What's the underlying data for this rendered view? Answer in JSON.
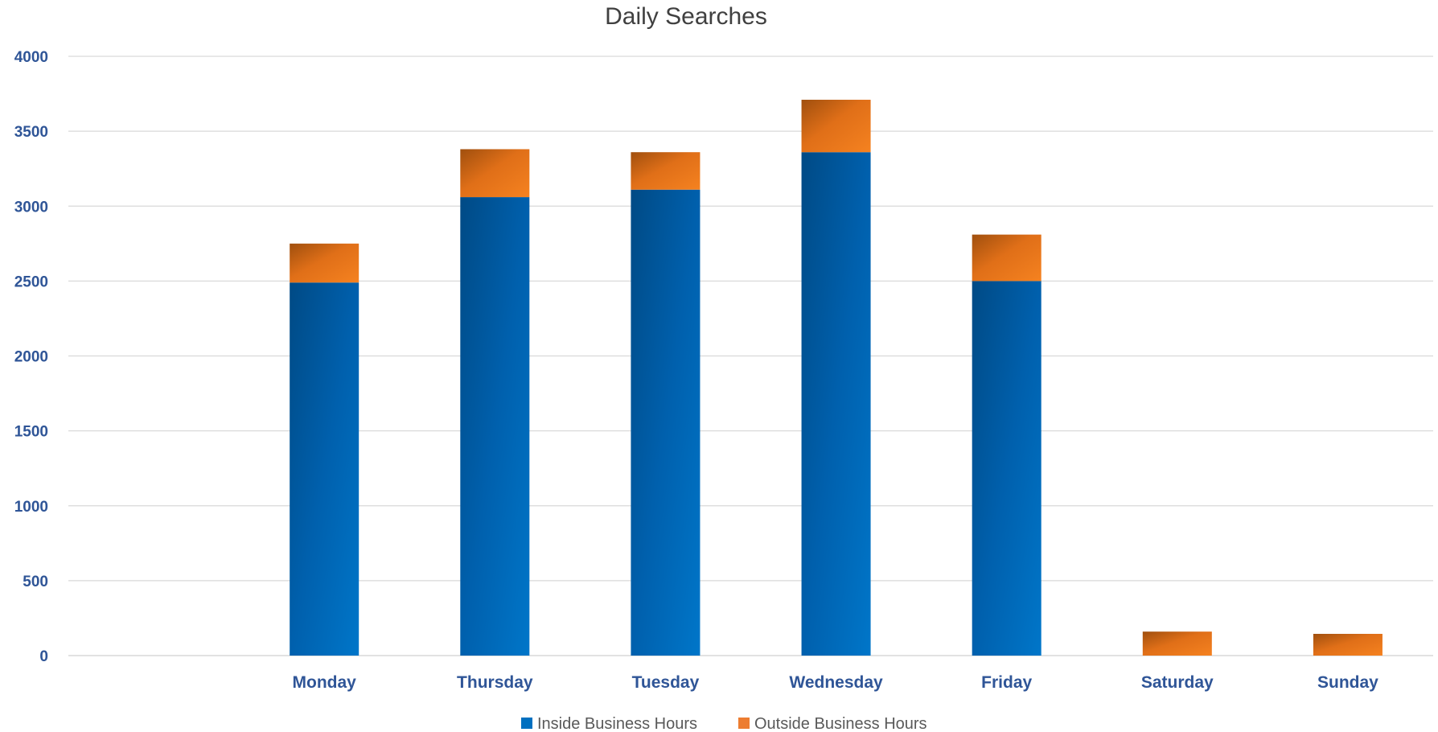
{
  "chart_data": {
    "type": "bar",
    "stacked": true,
    "title": "Daily Searches",
    "xlabel": "",
    "ylabel": "",
    "categories": [
      "",
      "Monday",
      "Thursday",
      "Tuesday",
      "Wednesday",
      "Friday",
      "Saturday",
      "Sunday"
    ],
    "series": [
      {
        "name": "Inside Business Hours",
        "color": "#0070c0",
        "values": [
          0,
          2490,
          3060,
          3110,
          3360,
          2500,
          0,
          0
        ]
      },
      {
        "name": "Outside Business Hours",
        "color": "#ed7d31",
        "values": [
          0,
          260,
          320,
          250,
          350,
          310,
          160,
          145
        ]
      }
    ],
    "ylim": [
      0,
      4000
    ],
    "yticks": [
      0,
      500,
      1000,
      1500,
      2000,
      2500,
      3000,
      3500,
      4000
    ],
    "grid": true,
    "legend_position": "bottom"
  }
}
